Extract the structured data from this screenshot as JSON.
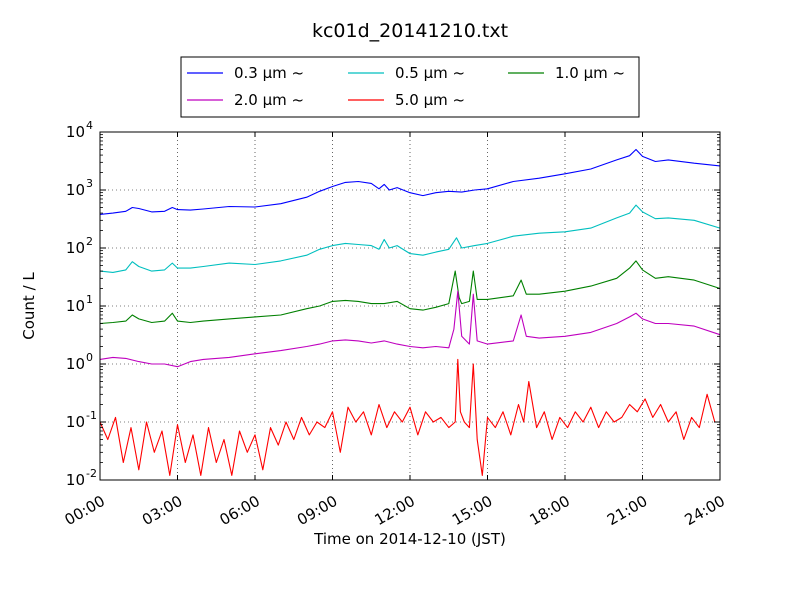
{
  "chart_data": {
    "type": "line",
    "title": "kc01d_20141210.txt",
    "xlabel": "Time on 2014-12-10 (JST)",
    "ylabel": "Count / L",
    "x_unit": "hour",
    "xlim": [
      0,
      24
    ],
    "ylim": [
      0.01,
      10000
    ],
    "yscale": "log",
    "grid": true,
    "legend_position": "top",
    "x_ticks": [
      "00:00",
      "03:00",
      "06:00",
      "09:00",
      "12:00",
      "15:00",
      "18:00",
      "21:00",
      "24:00"
    ],
    "y_ticks": [
      {
        "base": "10",
        "exp": "-2"
      },
      {
        "base": "10",
        "exp": "-1"
      },
      {
        "base": "10",
        "exp": "0"
      },
      {
        "base": "10",
        "exp": "1"
      },
      {
        "base": "10",
        "exp": "2"
      },
      {
        "base": "10",
        "exp": "3"
      },
      {
        "base": "10",
        "exp": "4"
      }
    ],
    "series": [
      {
        "name": "0.3 μm ~",
        "color": "#0000ff",
        "x": [
          0,
          0.5,
          1,
          1.25,
          1.5,
          2,
          2.5,
          2.8,
          3,
          3.5,
          4,
          5,
          6,
          7,
          8,
          8.5,
          9,
          9.5,
          10,
          10.5,
          10.8,
          11,
          11.2,
          11.5,
          12,
          12.5,
          13,
          13.5,
          14,
          14.5,
          15,
          16,
          17,
          18,
          19,
          20,
          20.5,
          20.75,
          21,
          21.5,
          22,
          23,
          24
        ],
        "y": [
          380,
          400,
          430,
          500,
          480,
          420,
          430,
          500,
          460,
          450,
          470,
          520,
          510,
          580,
          750,
          950,
          1150,
          1350,
          1400,
          1300,
          1050,
          1250,
          1000,
          1100,
          900,
          800,
          900,
          950,
          920,
          1000,
          1050,
          1400,
          1600,
          1900,
          2300,
          3300,
          3900,
          5000,
          3800,
          3100,
          3300,
          2900,
          2600
        ]
      },
      {
        "name": "0.5 μm ~",
        "color": "#00bfbf",
        "x": [
          0,
          0.5,
          1,
          1.25,
          1.5,
          2,
          2.5,
          2.8,
          3,
          3.5,
          4,
          5,
          6,
          7,
          8,
          8.5,
          9,
          9.5,
          10,
          10.5,
          10.8,
          11,
          11.2,
          11.5,
          12,
          12.5,
          13,
          13.5,
          13.8,
          14,
          14.5,
          15,
          16,
          17,
          18,
          19,
          20,
          20.5,
          20.75,
          21,
          21.5,
          22,
          23,
          24
        ],
        "y": [
          40,
          38,
          42,
          58,
          48,
          40,
          42,
          55,
          45,
          45,
          48,
          55,
          52,
          60,
          75,
          95,
          110,
          120,
          115,
          110,
          95,
          140,
          100,
          110,
          80,
          75,
          85,
          95,
          150,
          100,
          110,
          120,
          160,
          180,
          190,
          220,
          330,
          400,
          550,
          420,
          320,
          330,
          300,
          220
        ]
      },
      {
        "name": "1.0 μm ~",
        "color": "#008000",
        "x": [
          0,
          0.5,
          1,
          1.25,
          1.5,
          2,
          2.5,
          2.8,
          3,
          3.5,
          4,
          5,
          6,
          7,
          8,
          8.5,
          9,
          9.5,
          10,
          10.5,
          11,
          11.5,
          12,
          12.5,
          13,
          13.5,
          13.75,
          13.9,
          14,
          14.3,
          14.45,
          14.6,
          15,
          16,
          16.3,
          16.5,
          17,
          18,
          19,
          20,
          20.5,
          20.75,
          21,
          21.5,
          22,
          23,
          24
        ],
        "y": [
          5,
          5.2,
          5.5,
          7,
          6,
          5.2,
          5.5,
          7.5,
          5.5,
          5.2,
          5.5,
          6,
          6.5,
          7,
          9,
          10,
          12,
          12.5,
          12,
          11,
          11,
          12,
          9,
          8.5,
          9.5,
          11,
          40,
          14,
          11,
          12,
          40,
          13,
          13,
          15,
          28,
          16,
          16,
          18,
          22,
          30,
          45,
          60,
          42,
          30,
          32,
          28,
          20
        ]
      },
      {
        "name": "2.0 μm ~",
        "color": "#bf00bf",
        "x": [
          0,
          0.5,
          1,
          1.5,
          2,
          2.5,
          3,
          3.5,
          4,
          5,
          6,
          7,
          8,
          8.5,
          9,
          9.5,
          10,
          10.5,
          11,
          11.5,
          12,
          12.5,
          13,
          13.5,
          13.7,
          13.85,
          14,
          14.3,
          14.45,
          14.6,
          15,
          16,
          16.3,
          16.5,
          17,
          18,
          19,
          20,
          20.5,
          20.75,
          21,
          21.5,
          22,
          23,
          24
        ],
        "y": [
          1.2,
          1.3,
          1.25,
          1.1,
          1.0,
          1.0,
          0.9,
          1.1,
          1.2,
          1.3,
          1.5,
          1.7,
          2.0,
          2.2,
          2.5,
          2.6,
          2.5,
          2.3,
          2.5,
          2.2,
          2.0,
          1.9,
          2.0,
          1.9,
          4,
          18,
          3,
          2.2,
          16,
          2.5,
          2.2,
          2.5,
          7,
          3,
          2.8,
          3,
          3.5,
          5,
          6.5,
          7.5,
          6,
          5,
          5,
          4.5,
          3.2
        ]
      },
      {
        "name": "5.0 μm ~",
        "color": "#ff0000",
        "x": [
          0,
          0.3,
          0.6,
          0.9,
          1.2,
          1.5,
          1.8,
          2.1,
          2.4,
          2.7,
          3.0,
          3.3,
          3.6,
          3.9,
          4.2,
          4.5,
          4.8,
          5.1,
          5.4,
          5.7,
          6.0,
          6.3,
          6.6,
          6.9,
          7.2,
          7.5,
          7.8,
          8.1,
          8.4,
          8.7,
          9.0,
          9.3,
          9.6,
          9.9,
          10.2,
          10.5,
          10.8,
          11.1,
          11.4,
          11.7,
          12.0,
          12.3,
          12.6,
          12.9,
          13.2,
          13.5,
          13.75,
          13.85,
          13.95,
          14.1,
          14.3,
          14.45,
          14.6,
          14.8,
          15.0,
          15.3,
          15.6,
          15.9,
          16.2,
          16.4,
          16.6,
          16.9,
          17.2,
          17.5,
          17.8,
          18.1,
          18.4,
          18.7,
          19.0,
          19.3,
          19.6,
          19.9,
          20.2,
          20.5,
          20.8,
          21.1,
          21.4,
          21.7,
          22.0,
          22.3,
          22.6,
          22.9,
          23.2,
          23.5,
          23.8,
          24.0
        ],
        "y": [
          0.1,
          0.05,
          0.12,
          0.02,
          0.08,
          0.015,
          0.1,
          0.03,
          0.07,
          0.012,
          0.09,
          0.02,
          0.06,
          0.012,
          0.08,
          0.02,
          0.05,
          0.012,
          0.07,
          0.03,
          0.06,
          0.015,
          0.08,
          0.04,
          0.1,
          0.05,
          0.12,
          0.06,
          0.1,
          0.08,
          0.15,
          0.03,
          0.18,
          0.1,
          0.15,
          0.06,
          0.2,
          0.08,
          0.15,
          0.1,
          0.18,
          0.06,
          0.15,
          0.1,
          0.12,
          0.08,
          0.1,
          1.2,
          0.15,
          0.1,
          0.08,
          1.0,
          0.05,
          0.012,
          0.12,
          0.08,
          0.15,
          0.06,
          0.2,
          0.1,
          0.5,
          0.08,
          0.15,
          0.05,
          0.12,
          0.08,
          0.15,
          0.1,
          0.18,
          0.08,
          0.15,
          0.1,
          0.12,
          0.2,
          0.15,
          0.25,
          0.12,
          0.2,
          0.1,
          0.15,
          0.05,
          0.12,
          0.08,
          0.3,
          0.1,
          0.1
        ]
      }
    ]
  }
}
